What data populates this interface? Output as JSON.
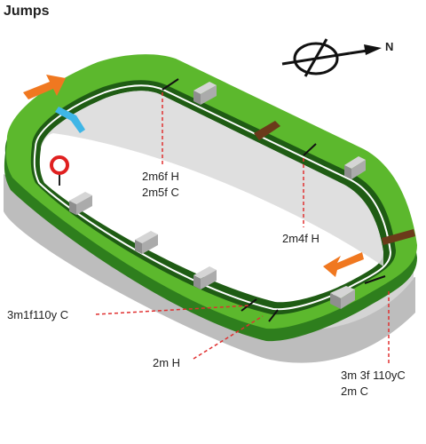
{
  "title": "Jumps",
  "compass": {
    "north_label": "N"
  },
  "labels": {
    "l_2m6f_h": "2m6f H",
    "l_2m5f_c": "2m5f C",
    "l_2m4f_h": "2m4f H",
    "l_3m1f110y_c": "3m1f110y C",
    "l_2m_h": "2m H",
    "l_3m3f110y_c": "3m 3f 110yC",
    "l_2m_c": "2m C"
  },
  "colors": {
    "track_light": "#5cb82d",
    "track_dark": "#2e7e1d",
    "track_darker": "#1f5c14",
    "base": "#c8c8c8",
    "base_dark": "#9a9a9a",
    "arrow": "#f07820",
    "marker_red": "#e02020",
    "rail_blue": "#3fb6e6",
    "rail_brown": "#6b3a1a",
    "fence": "#a9a9a9",
    "leader": "#e03030"
  }
}
